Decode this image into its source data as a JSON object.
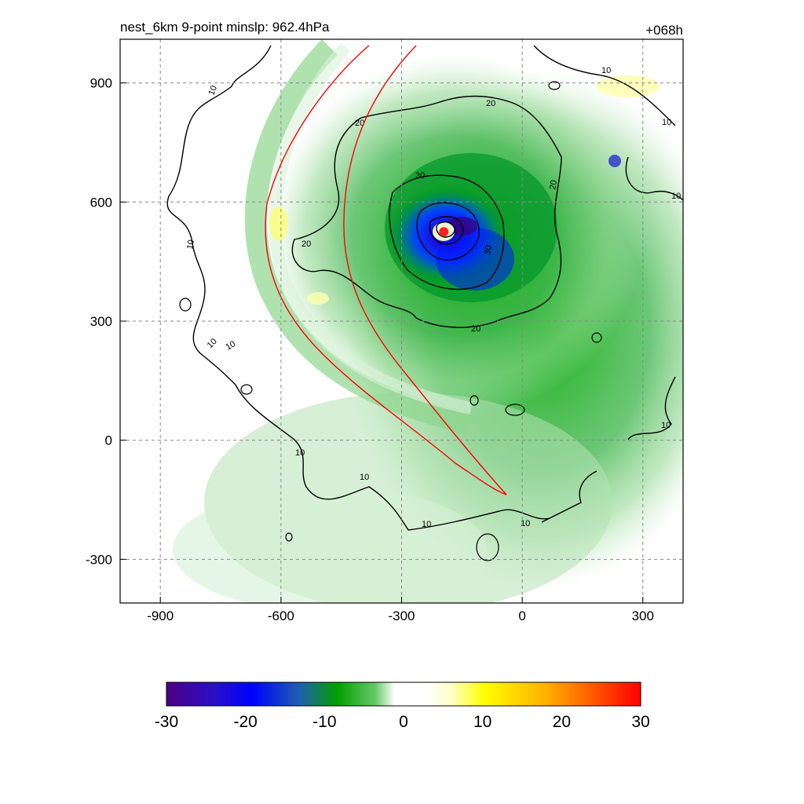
{
  "chart_data": {
    "type": "heatmap",
    "title": "nest_6km  9-point minslp: 962.4hPa",
    "forecast_hour": "+068h",
    "xlim": [
      -1000,
      400
    ],
    "ylim": [
      -410,
      1010
    ],
    "x_ticks": [
      -900,
      -600,
      -300,
      0,
      300
    ],
    "y_ticks": [
      900,
      600,
      300,
      0,
      -300
    ],
    "grid": true,
    "storm_center": {
      "x": -195,
      "y": 525
    },
    "colorbar": {
      "min": -30,
      "max": 30,
      "tick_labels": [
        "-30",
        "-20",
        "-10",
        "0",
        "10",
        "20",
        "30"
      ],
      "placement": "bottom"
    },
    "contour_labels": [
      "10",
      "20",
      "30"
    ],
    "colors": {
      "neg_strong": "#4b0082",
      "neg_blue": "#0000ff",
      "neg_green": "#00a000",
      "neutral": "#ffffff",
      "pos_yellow": "#ffff00",
      "pos_red": "#ff0000",
      "track": "#ff0000",
      "contour": "#000000"
    }
  }
}
